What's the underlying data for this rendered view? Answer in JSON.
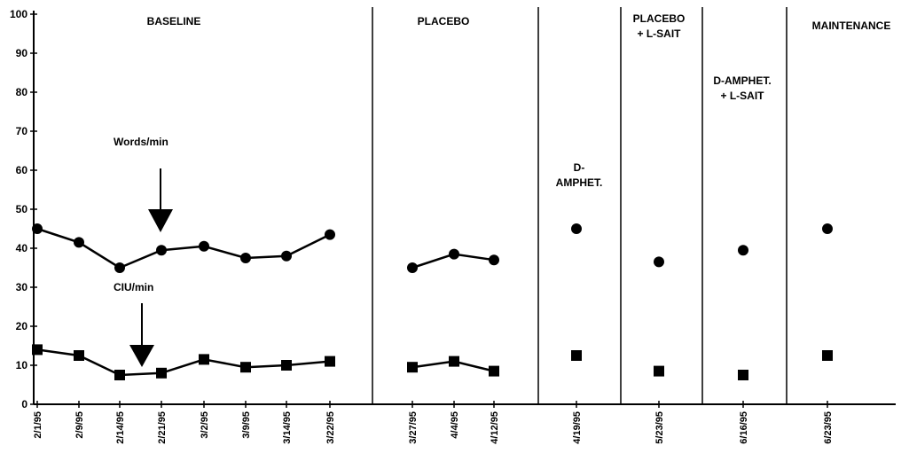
{
  "chart_data": {
    "type": "line",
    "ylim": [
      0,
      100
    ],
    "yticks": [
      "0",
      "10",
      "20",
      "30",
      "40",
      "50",
      "60",
      "70",
      "80",
      "90",
      "100"
    ],
    "grid": false,
    "categories": [
      "2/1/95",
      "2/9/95",
      "2/14/95",
      "2/21/95",
      "3/2/95",
      "3/9/95",
      "3/14/95",
      "3/22/95",
      "3/27/95",
      "4/4/95",
      "4/12/95",
      "4/19/95",
      "5/23/95",
      "6/16/95",
      "6/23/95"
    ],
    "phases": [
      {
        "lines": [
          "BASELINE"
        ]
      },
      {
        "lines": [
          "PLACEBO"
        ]
      },
      {
        "lines": [
          "D-",
          "AMPHET."
        ]
      },
      {
        "lines": [
          "PLACEBO",
          "+ L-SAIT"
        ]
      },
      {
        "lines": [
          "D-AMPHET.",
          "+ L-SAIT"
        ]
      },
      {
        "lines": [
          "MAINTENANCE"
        ]
      }
    ],
    "series": [
      {
        "name": "Words/min",
        "marker": "circle",
        "values": [
          45,
          41.5,
          35,
          39.5,
          40.5,
          37.5,
          38,
          43.5,
          35,
          38.5,
          37,
          45,
          36.5,
          39.5,
          45
        ]
      },
      {
        "name": "CIU/min",
        "marker": "square",
        "values": [
          14,
          12.5,
          7.5,
          8,
          11.5,
          9.5,
          10,
          11,
          9.5,
          11,
          8.5,
          12.5,
          8.5,
          7.5,
          12.5
        ]
      }
    ]
  }
}
